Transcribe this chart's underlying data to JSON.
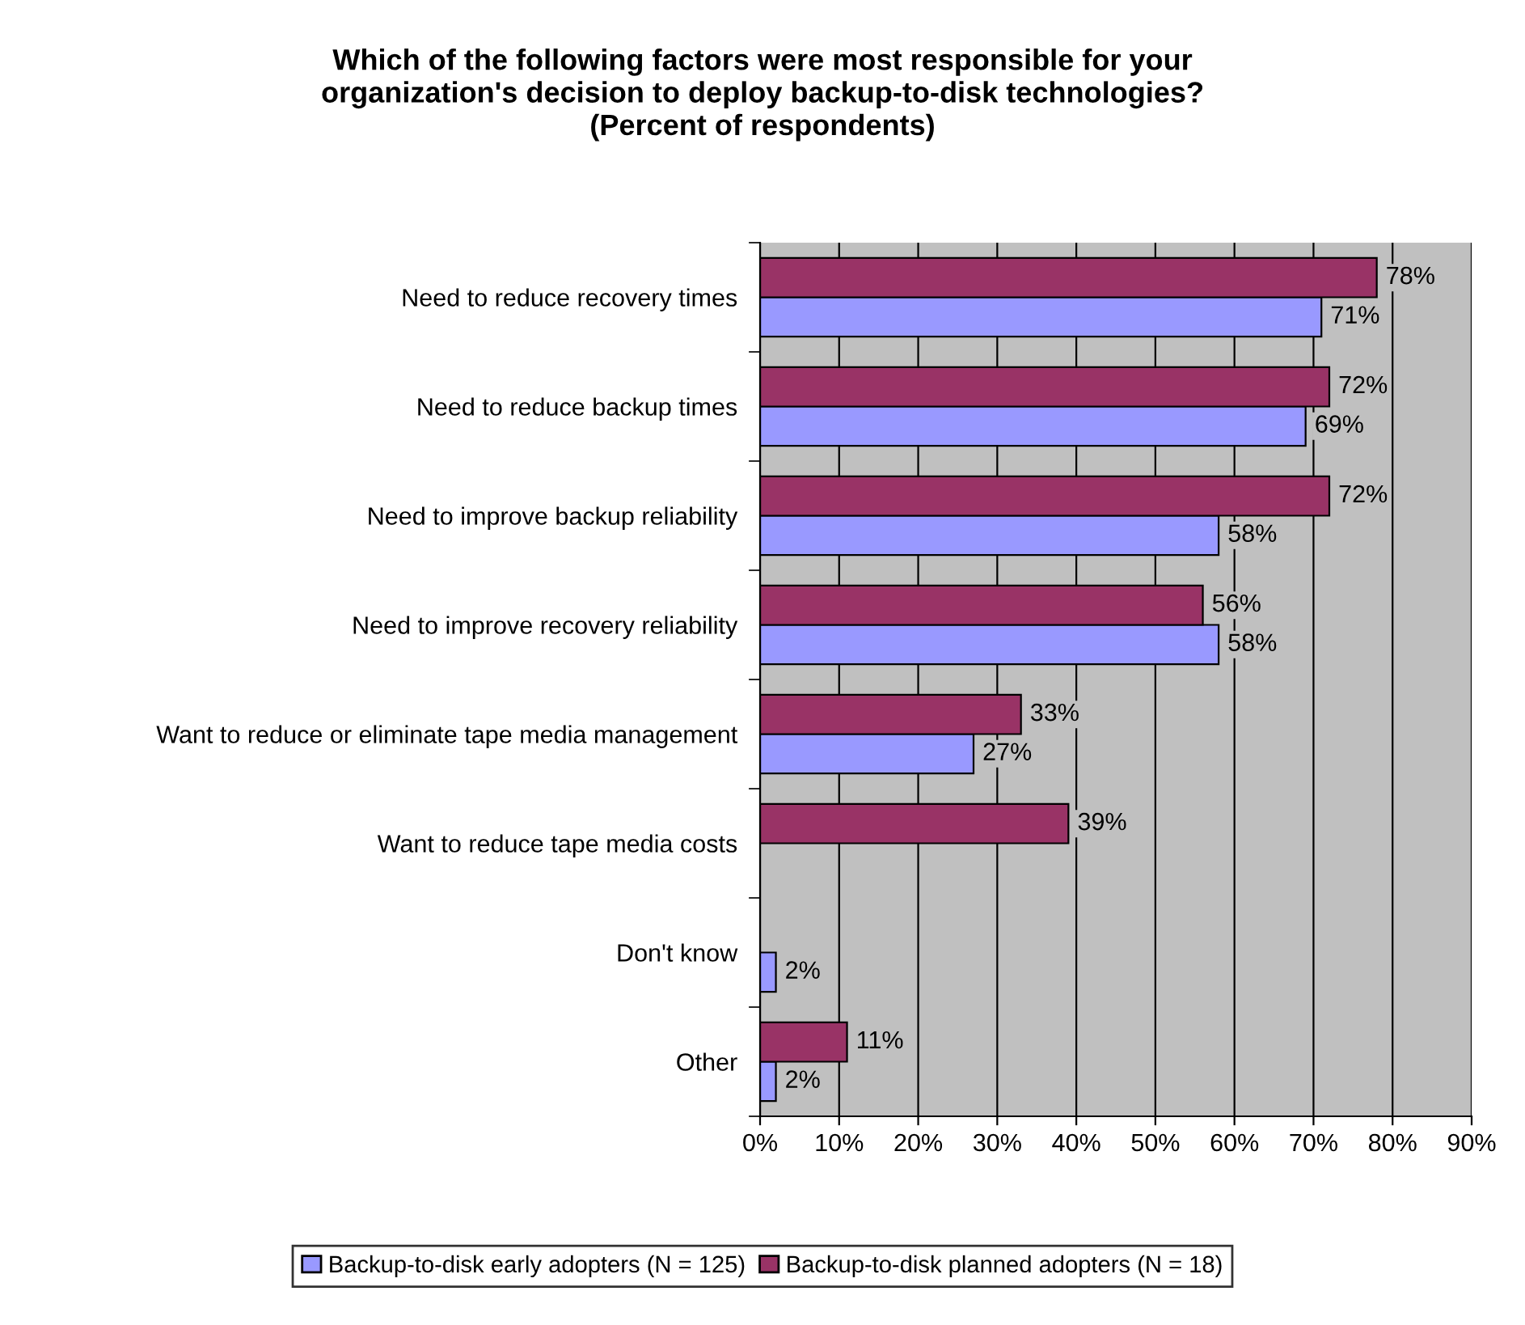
{
  "chart_data": {
    "type": "bar",
    "orientation": "horizontal",
    "title": "Which of the following factors were most responsible for your\norganization's decision to deploy backup-to-disk technologies?\n(Percent of respondents)",
    "categories": [
      "Need to reduce recovery times",
      "Need to reduce backup times",
      "Need to improve backup reliability",
      "Need to improve recovery reliability",
      "Want to reduce or eliminate tape media management",
      "Want to reduce tape media costs",
      "Don't know",
      "Other"
    ],
    "series": [
      {
        "name": "Backup-to-disk early adopters (N = 125)",
        "color": "#9999ff",
        "values": [
          71,
          69,
          58,
          58,
          27,
          null,
          2,
          2
        ],
        "value_labels": [
          "71%",
          "69%",
          "58%",
          "58%",
          "27%",
          null,
          "2%",
          "2%"
        ]
      },
      {
        "name": "Backup-to-disk planned adopters (N = 18)",
        "color": "#993366",
        "values": [
          78,
          72,
          72,
          56,
          33,
          39,
          null,
          11
        ],
        "value_labels": [
          "78%",
          "72%",
          "72%",
          "56%",
          "33%",
          "39%",
          null,
          "11%"
        ]
      }
    ],
    "xlim": [
      0,
      90
    ],
    "xticks": [
      {
        "value": 0,
        "label": "0%"
      },
      {
        "value": 10,
        "label": "10%"
      },
      {
        "value": 20,
        "label": "20%"
      },
      {
        "value": 30,
        "label": "30%"
      },
      {
        "value": 40,
        "label": "40%"
      },
      {
        "value": 50,
        "label": "50%"
      },
      {
        "value": 60,
        "label": "60%"
      },
      {
        "value": 70,
        "label": "70%"
      },
      {
        "value": 80,
        "label": "80%"
      },
      {
        "value": 90,
        "label": "90%"
      }
    ],
    "grid": "x",
    "legend": "bottom"
  }
}
